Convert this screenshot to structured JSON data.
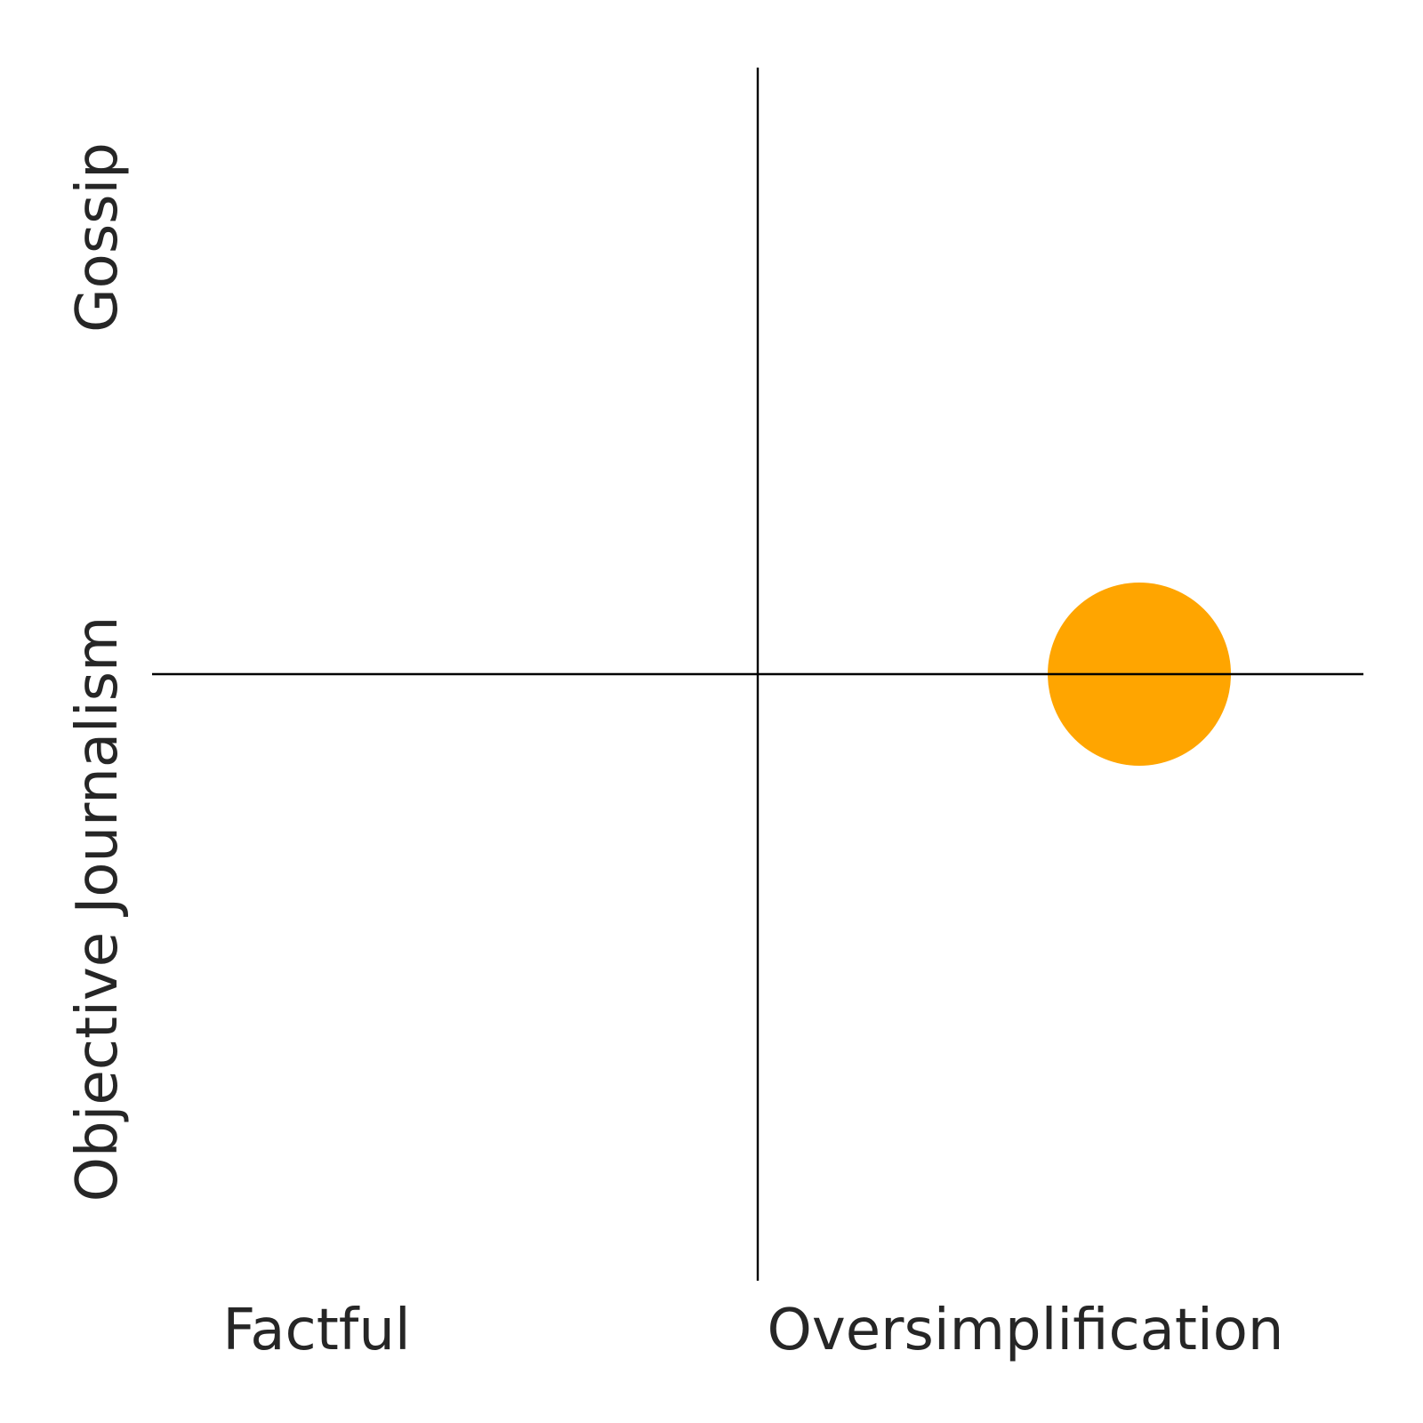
{
  "chart_data": {
    "type": "scatter",
    "title": "",
    "x_labels": {
      "low": "Factful",
      "high": "Oversimplification"
    },
    "y_labels": {
      "low": "Objective Journalism",
      "high": "Gossip"
    },
    "xlim": [
      -1,
      1
    ],
    "ylim": [
      -1,
      1
    ],
    "grid": false,
    "axes_lines": "crosshair at 0,0",
    "points": [
      {
        "x": 0.63,
        "y": 0.0,
        "color": "#FFA500"
      }
    ]
  }
}
